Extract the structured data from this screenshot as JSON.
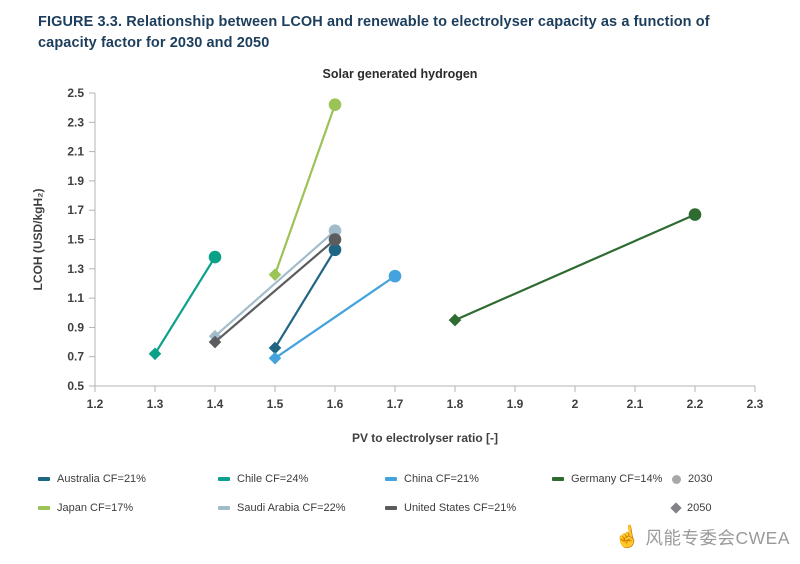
{
  "header": {
    "title": "FIGURE 3.3. Relationship between LCOH and renewable to electrolyser capacity as a function of capacity factor for 2030 and 2050"
  },
  "chart_data": {
    "type": "line",
    "title": "Solar generated hydrogen",
    "xlabel": "PV to electrolyser ratio [-]",
    "ylabel": "LCOH (USD/kgH₂)",
    "xlim": [
      1.2,
      2.3
    ],
    "ylim": [
      0.5,
      2.5
    ],
    "grid": false,
    "legend_position": "bottom",
    "xticks": [
      {
        "v": 1.2,
        "label": "1.2"
      },
      {
        "v": 1.3,
        "label": "1.3"
      },
      {
        "v": 1.4,
        "label": "1.4"
      },
      {
        "v": 1.5,
        "label": "1.5"
      },
      {
        "v": 1.6,
        "label": "1.6"
      },
      {
        "v": 1.7,
        "label": "1.7"
      },
      {
        "v": 1.8,
        "label": "1.8"
      },
      {
        "v": 1.9,
        "label": "1.9"
      },
      {
        "v": 2.0,
        "label": "2"
      },
      {
        "v": 2.1,
        "label": "2.1"
      },
      {
        "v": 2.2,
        "label": "2.2"
      },
      {
        "v": 2.3,
        "label": "2.3"
      }
    ],
    "yticks": [
      {
        "v": 0.5,
        "label": "0.5"
      },
      {
        "v": 0.7,
        "label": "0.7"
      },
      {
        "v": 0.9,
        "label": "0.9"
      },
      {
        "v": 1.1,
        "label": "1.1"
      },
      {
        "v": 1.3,
        "label": "1.3"
      },
      {
        "v": 1.5,
        "label": "1.5"
      },
      {
        "v": 1.7,
        "label": "1.7"
      },
      {
        "v": 1.9,
        "label": "1.9"
      },
      {
        "v": 2.1,
        "label": "2.1"
      },
      {
        "v": 2.3,
        "label": "2.3"
      },
      {
        "v": 2.5,
        "label": "2.5"
      }
    ],
    "series": [
      {
        "name": "Australia CF=21%",
        "color": "#1f6584",
        "points": [
          {
            "x": 1.5,
            "y": 0.76,
            "marker": "diamond",
            "year": "2050"
          },
          {
            "x": 1.6,
            "y": 1.43,
            "marker": "circle",
            "year": "2030"
          }
        ]
      },
      {
        "name": "Chile CF=24%",
        "color": "#0ba189",
        "points": [
          {
            "x": 1.3,
            "y": 0.72,
            "marker": "diamond",
            "year": "2050"
          },
          {
            "x": 1.4,
            "y": 1.38,
            "marker": "circle",
            "year": "2030"
          }
        ]
      },
      {
        "name": "China CF=21%",
        "color": "#44a3dd",
        "points": [
          {
            "x": 1.5,
            "y": 0.69,
            "marker": "diamond",
            "year": "2050"
          },
          {
            "x": 1.7,
            "y": 1.25,
            "marker": "circle",
            "year": "2030"
          }
        ]
      },
      {
        "name": "Germany CF=14%",
        "color": "#2e6b31",
        "points": [
          {
            "x": 1.8,
            "y": 0.95,
            "marker": "diamond",
            "year": "2050"
          },
          {
            "x": 2.2,
            "y": 1.67,
            "marker": "circle",
            "year": "2030"
          }
        ]
      },
      {
        "name": "Japan CF=17%",
        "color": "#9bc356",
        "points": [
          {
            "x": 1.5,
            "y": 1.26,
            "marker": "diamond",
            "year": "2050"
          },
          {
            "x": 1.6,
            "y": 2.42,
            "marker": "circle",
            "year": "2030"
          }
        ]
      },
      {
        "name": "Saudi Arabia CF=22%",
        "color": "#a2bccb",
        "points": [
          {
            "x": 1.4,
            "y": 0.84,
            "marker": "diamond",
            "year": "2050"
          },
          {
            "x": 1.6,
            "y": 1.56,
            "marker": "circle",
            "year": "2030"
          }
        ]
      },
      {
        "name": "United States CF=21%",
        "color": "#5b5c5e",
        "points": [
          {
            "x": 1.4,
            "y": 0.8,
            "marker": "diamond",
            "year": "2050"
          },
          {
            "x": 1.6,
            "y": 1.5,
            "marker": "circle",
            "year": "2030"
          }
        ]
      }
    ],
    "marker_legend": [
      {
        "label": "2030",
        "shape": "circle",
        "color": "#a6a8ab"
      },
      {
        "label": "2050",
        "shape": "diamond",
        "color": "#808285"
      }
    ]
  },
  "watermark": {
    "text": "风能专委会CWEA",
    "icon": "pointing-hand",
    "icon_glyph": "☝"
  }
}
